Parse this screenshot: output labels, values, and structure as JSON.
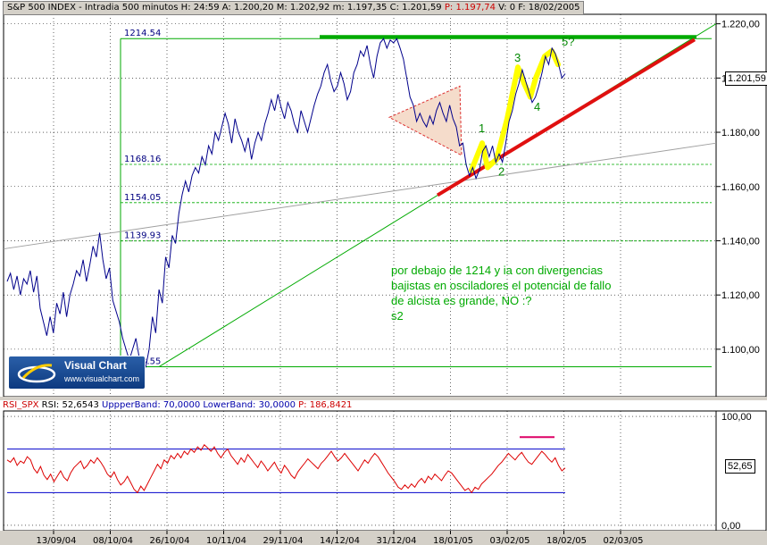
{
  "header": {
    "title": "S&P 500 INDEX - Intradia 500 minutos",
    "H": "H: 24:59",
    "A": "A: 1.200,20",
    "M": "M: 1.202,92",
    "m": "m: 1.197,35",
    "C": "C: 1.201,59",
    "P": "P: 1.197,74",
    "V": "V: 0",
    "F": "F: 18/02/2005"
  },
  "rsi_header": {
    "name": "RSI_SPX",
    "value": "RSI: 52,6543",
    "upper": "UppperBand: 70,0000",
    "lower": "LowerBand: 30,0000",
    "p": "P: 186,8421"
  },
  "logo": {
    "name": "Visual Chart",
    "url": "www.visualchart.com"
  },
  "colors": {
    "price_line": "#00008b",
    "green": "#00aa00",
    "red_trend": "#e01010",
    "yellow": "#ffff00",
    "rsi_line": "#dd0000",
    "rsi_band": "#0000cc",
    "grid": "#000000"
  },
  "note": {
    "lines": [
      "por debajo de 1214 y ia con divergencias",
      "bajistas en osciladores el potencial de fallo",
      "de alcista es grande, NO :?",
      "s2"
    ]
  },
  "last_price_label": "1.201,59",
  "last_rsi_label": "52,65",
  "chart_data": [
    {
      "type": "line",
      "title": "S&P 500 INDEX - Intradia 500 minutos",
      "y_tick_labels": [
        "1.220,00",
        "1.200,00",
        "1.180,00",
        "1.160,00",
        "1.140,00",
        "1.120,00",
        "1.100,00"
      ],
      "y_ticks": [
        1220,
        1200,
        1180,
        1160,
        1140,
        1120,
        1100
      ],
      "ylim": [
        1082.5,
        1223.5
      ],
      "x_tick_labels": [
        "13/09/04",
        "08/10/04",
        "26/10/04",
        "10/11/04",
        "29/11/04",
        "14/12/04",
        "31/12/04",
        "18/01/05",
        "03/02/05",
        "18/02/05",
        "02/03/05"
      ],
      "levels": [
        {
          "label": "1214.54",
          "value": 1214.54
        },
        {
          "label": "1168.16",
          "value": 1168.16
        },
        {
          "label": "1154.05",
          "value": 1154.05
        },
        {
          "label": "1139.93",
          "value": 1139.93
        },
        {
          "label": "1093.55",
          "value": 1093.55
        }
      ],
      "wave_labels": [
        "1",
        "2",
        "3",
        "4",
        "5?"
      ],
      "series": [
        {
          "values": [
            1125,
            1128,
            1122,
            1127,
            1120,
            1126,
            1124,
            1129,
            1121,
            1127,
            1115,
            1110,
            1105,
            1112,
            1106,
            1117,
            1113,
            1121,
            1112,
            1120,
            1124,
            1129,
            1127,
            1133,
            1125,
            1131,
            1138,
            1134,
            1143,
            1133,
            1126,
            1130,
            1118,
            1114,
            1110,
            1104,
            1100,
            1096,
            1100,
            1104,
            1097,
            1095,
            1093.5,
            1100,
            1112,
            1106,
            1122,
            1117,
            1134,
            1130,
            1142,
            1139,
            1150,
            1157,
            1162,
            1158,
            1164,
            1167,
            1165,
            1171,
            1168,
            1175,
            1172,
            1180,
            1177,
            1182,
            1187,
            1183,
            1176,
            1185,
            1180,
            1177,
            1173,
            1178,
            1170,
            1176,
            1180,
            1177,
            1183,
            1187,
            1192,
            1188,
            1194,
            1189,
            1185,
            1191,
            1188,
            1183,
            1180,
            1188,
            1184,
            1180,
            1185,
            1190,
            1194,
            1197,
            1202,
            1205,
            1199,
            1195,
            1197,
            1202,
            1198,
            1192,
            1195,
            1202,
            1205,
            1210,
            1208,
            1212,
            1205,
            1200,
            1208,
            1213,
            1214.5,
            1211,
            1214,
            1213,
            1214.5,
            1211,
            1207,
            1200,
            1193,
            1190,
            1184,
            1187,
            1184,
            1182,
            1186,
            1183,
            1188,
            1191,
            1187,
            1184,
            1190,
            1185,
            1182,
            1175,
            1176,
            1168,
            1164,
            1167,
            1163,
            1166,
            1173,
            1175,
            1171,
            1175,
            1169,
            1172,
            1169,
            1176,
            1184,
            1188,
            1194,
            1198,
            1203,
            1199,
            1195,
            1191,
            1193,
            1197,
            1202,
            1208,
            1205,
            1211,
            1209,
            1205,
            1200,
            1201.6
          ]
        }
      ]
    },
    {
      "type": "line",
      "title": "RSI_SPX",
      "y_tick_labels": [
        "100,00",
        "0,00"
      ],
      "ylim": [
        -5,
        105
      ],
      "bands": [
        70,
        30
      ],
      "series": [
        {
          "values": [
            60,
            58,
            62,
            55,
            59,
            57,
            63,
            60,
            52,
            48,
            54,
            46,
            42,
            47,
            40,
            45,
            50,
            44,
            41,
            48,
            53,
            56,
            59,
            52,
            55,
            60,
            57,
            62,
            58,
            53,
            47,
            44,
            49,
            42,
            37,
            40,
            45,
            39,
            33,
            30,
            36,
            32,
            38,
            44,
            50,
            56,
            52,
            60,
            57,
            64,
            61,
            66,
            62,
            68,
            65,
            70,
            67,
            72,
            69,
            74,
            71,
            68,
            72,
            66,
            62,
            67,
            70,
            64,
            60,
            56,
            62,
            58,
            65,
            61,
            57,
            53,
            59,
            55,
            50,
            54,
            58,
            52,
            48,
            55,
            51,
            46,
            43,
            49,
            53,
            57,
            61,
            58,
            55,
            52,
            57,
            60,
            64,
            68,
            63,
            59,
            62,
            66,
            62,
            58,
            54,
            50,
            55,
            60,
            57,
            62,
            66,
            63,
            58,
            53,
            48,
            44,
            40,
            35,
            33,
            37,
            34,
            38,
            35,
            40,
            43,
            39,
            45,
            42,
            47,
            44,
            41,
            46,
            50,
            48,
            44,
            40,
            36,
            32,
            34,
            30,
            35,
            33,
            38,
            41,
            44,
            47,
            51,
            55,
            58,
            62,
            66,
            63,
            60,
            64,
            67,
            62,
            58,
            56,
            60,
            64,
            68,
            65,
            61,
            58,
            62,
            55,
            50,
            52.65
          ]
        }
      ]
    }
  ]
}
